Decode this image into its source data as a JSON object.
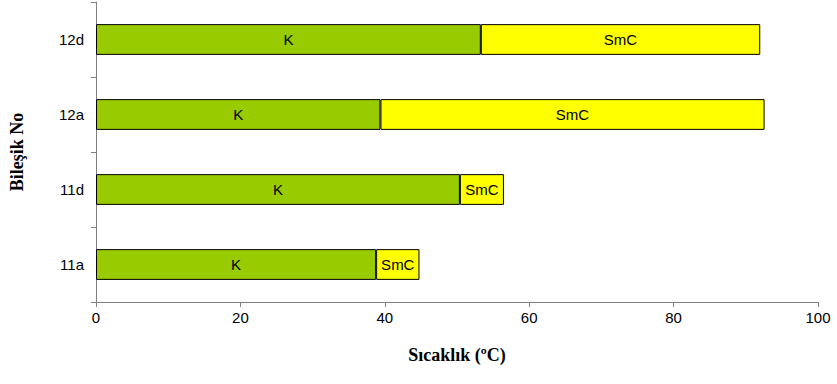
{
  "chart_data": {
    "type": "bar",
    "orientation": "horizontal",
    "stacked": true,
    "xlabel": "Sıcaklık (ºC)",
    "ylabel": "Bileşik No",
    "categories": [
      "11a",
      "11d",
      "12a",
      "12d"
    ],
    "series": [
      {
        "name": "K",
        "color": "#99cc00",
        "values": [
          38.8,
          50.4,
          39.4,
          53.3
        ]
      },
      {
        "name": "SmC",
        "color": "#ffff00",
        "values": [
          6.0,
          6.1,
          53.2,
          38.7
        ]
      }
    ],
    "xlim": [
      0,
      100
    ],
    "xticks": [
      0,
      20,
      40,
      60,
      80,
      100
    ],
    "grid": false
  }
}
